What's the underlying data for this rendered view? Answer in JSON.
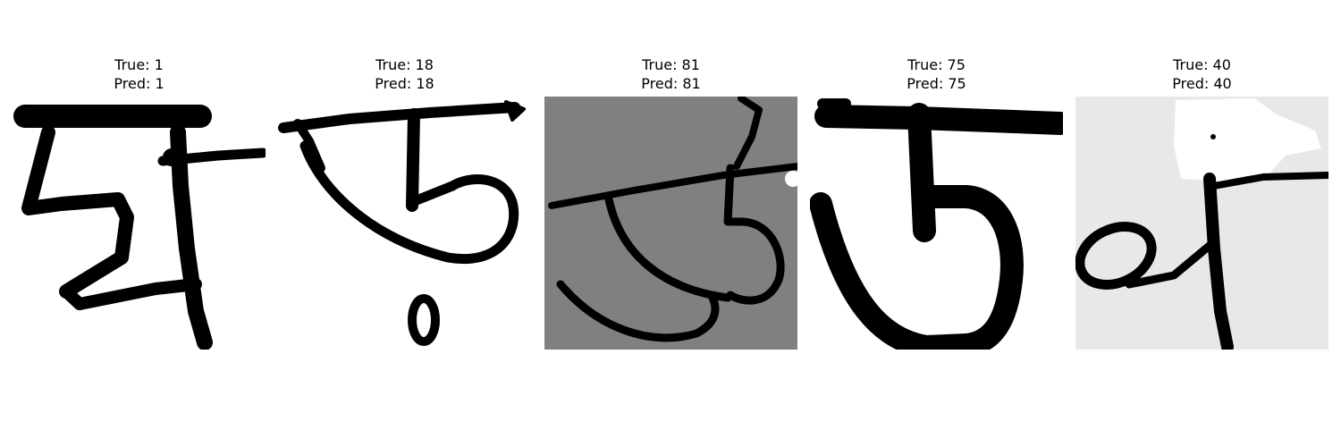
{
  "samples": [
    {
      "true_label": "True: 1",
      "pred_label": "Pred: 1",
      "background": "#ffffff"
    },
    {
      "true_label": "True: 18",
      "pred_label": "Pred: 18",
      "background": "#ffffff"
    },
    {
      "true_label": "True: 81",
      "pred_label": "Pred: 81",
      "background": "#808080"
    },
    {
      "true_label": "True: 75",
      "pred_label": "Pred: 75",
      "background": "#ffffff"
    },
    {
      "true_label": "True: 40",
      "pred_label": "Pred: 40",
      "background": "#e8e8e8"
    }
  ],
  "ink_color": "#000000"
}
